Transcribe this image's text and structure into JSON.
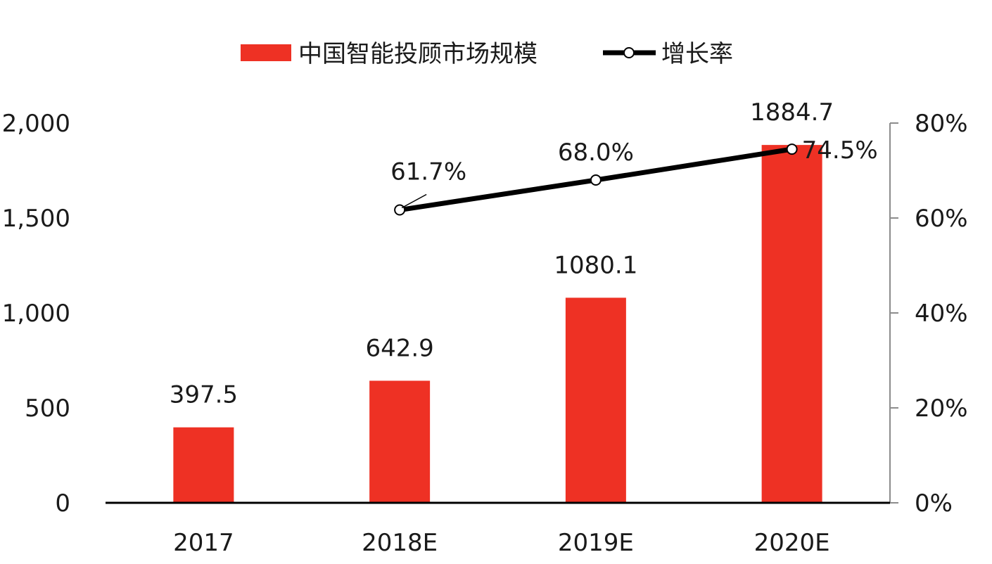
{
  "chart_data": {
    "type": "bar",
    "categories": [
      "2017",
      "2018E",
      "2019E",
      "2020E"
    ],
    "series": [
      {
        "name": "中国智能投顾市场规模",
        "type": "bar",
        "axis": "left",
        "values": [
          397.5,
          642.9,
          1080.1,
          1884.7
        ],
        "value_labels": [
          "397.5",
          "642.9",
          "1080.1",
          "1884.7"
        ],
        "color": "#ee3124"
      },
      {
        "name": "增长率",
        "type": "line",
        "axis": "right",
        "values": [
          null,
          61.7,
          68.0,
          74.5
        ],
        "value_labels": [
          "",
          "61.7%",
          "68.0%",
          "74.5%"
        ],
        "color": "#000000"
      }
    ],
    "y_left": {
      "ylim": [
        0,
        2000
      ],
      "ticks": [
        "0",
        "500",
        "1,000",
        "1,500",
        "2,000"
      ]
    },
    "y_right": {
      "ylim": [
        0,
        80
      ],
      "ticks": [
        "0%",
        "20%",
        "40%",
        "60%",
        "80%"
      ]
    },
    "legend_position": "top-center",
    "grid": false,
    "title": "",
    "xlabel": "",
    "ylabel": ""
  }
}
